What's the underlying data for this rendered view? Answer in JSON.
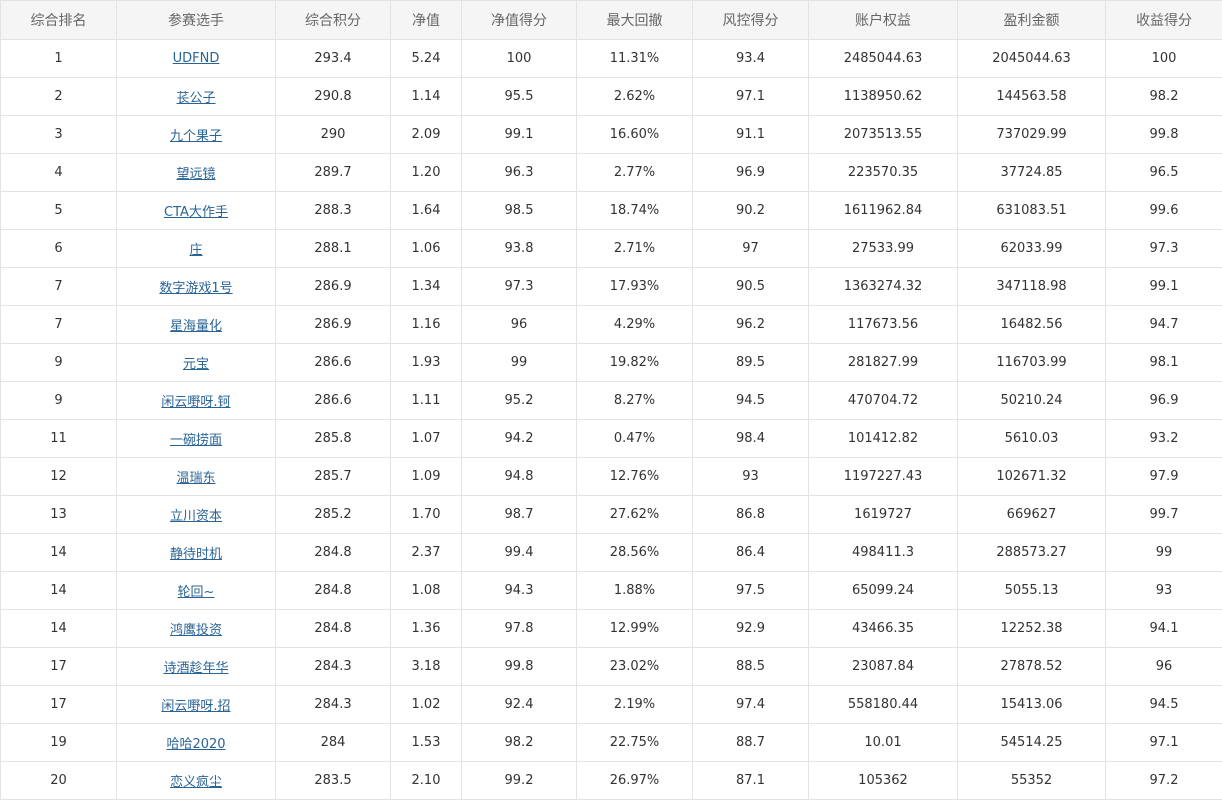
{
  "table": {
    "headers": [
      "综合排名",
      "参赛选手",
      "综合积分",
      "净值",
      "净值得分",
      "最大回撤",
      "风控得分",
      "账户权益",
      "盈利金额",
      "收益得分"
    ],
    "rows": [
      [
        "1",
        "UDFND",
        "293.4",
        "5.24",
        "100",
        "11.31%",
        "93.4",
        "2485044.63",
        "2045044.63",
        "100"
      ],
      [
        "2",
        "苌公子",
        "290.8",
        "1.14",
        "95.5",
        "2.62%",
        "97.1",
        "1138950.62",
        "144563.58",
        "98.2"
      ],
      [
        "3",
        "九个果子",
        "290",
        "2.09",
        "99.1",
        "16.60%",
        "91.1",
        "2073513.55",
        "737029.99",
        "99.8"
      ],
      [
        "4",
        "望远镜",
        "289.7",
        "1.20",
        "96.3",
        "2.77%",
        "96.9",
        "223570.35",
        "37724.85",
        "96.5"
      ],
      [
        "5",
        "CTA大作手",
        "288.3",
        "1.64",
        "98.5",
        "18.74%",
        "90.2",
        "1611962.84",
        "631083.51",
        "99.6"
      ],
      [
        "6",
        "庄",
        "288.1",
        "1.06",
        "93.8",
        "2.71%",
        "97",
        "27533.99",
        "62033.99",
        "97.3"
      ],
      [
        "7",
        "数字游戏1号",
        "286.9",
        "1.34",
        "97.3",
        "17.93%",
        "90.5",
        "1363274.32",
        "347118.98",
        "99.1"
      ],
      [
        "7",
        "星海量化",
        "286.9",
        "1.16",
        "96",
        "4.29%",
        "96.2",
        "117673.56",
        "16482.56",
        "94.7"
      ],
      [
        "9",
        "元宝",
        "286.6",
        "1.93",
        "99",
        "19.82%",
        "89.5",
        "281827.99",
        "116703.99",
        "98.1"
      ],
      [
        "9",
        "闲云嘢呀.钶",
        "286.6",
        "1.11",
        "95.2",
        "8.27%",
        "94.5",
        "470704.72",
        "50210.24",
        "96.9"
      ],
      [
        "11",
        "一碗捞面",
        "285.8",
        "1.07",
        "94.2",
        "0.47%",
        "98.4",
        "101412.82",
        "5610.03",
        "93.2"
      ],
      [
        "12",
        "温瑞东",
        "285.7",
        "1.09",
        "94.8",
        "12.76%",
        "93",
        "1197227.43",
        "102671.32",
        "97.9"
      ],
      [
        "13",
        "立川资本",
        "285.2",
        "1.70",
        "98.7",
        "27.62%",
        "86.8",
        "1619727",
        "669627",
        "99.7"
      ],
      [
        "14",
        "静待时机",
        "284.8",
        "2.37",
        "99.4",
        "28.56%",
        "86.4",
        "498411.3",
        "288573.27",
        "99"
      ],
      [
        "14",
        "轮回~",
        "284.8",
        "1.08",
        "94.3",
        "1.88%",
        "97.5",
        "65099.24",
        "5055.13",
        "93"
      ],
      [
        "14",
        "鸿鹰投资",
        "284.8",
        "1.36",
        "97.8",
        "12.99%",
        "92.9",
        "43466.35",
        "12252.38",
        "94.1"
      ],
      [
        "17",
        "诗酒趁年华",
        "284.3",
        "3.18",
        "99.8",
        "23.02%",
        "88.5",
        "23087.84",
        "27878.52",
        "96"
      ],
      [
        "17",
        "闲云嘢呀.招",
        "284.3",
        "1.02",
        "92.4",
        "2.19%",
        "97.4",
        "558180.44",
        "15413.06",
        "94.5"
      ],
      [
        "19",
        "哈哈2020",
        "284",
        "1.53",
        "98.2",
        "22.75%",
        "88.7",
        "10.01",
        "54514.25",
        "97.1"
      ],
      [
        "20",
        "恋义疯尘",
        "283.5",
        "2.10",
        "99.2",
        "26.97%",
        "87.1",
        "105362",
        "55352",
        "97.2"
      ]
    ]
  }
}
